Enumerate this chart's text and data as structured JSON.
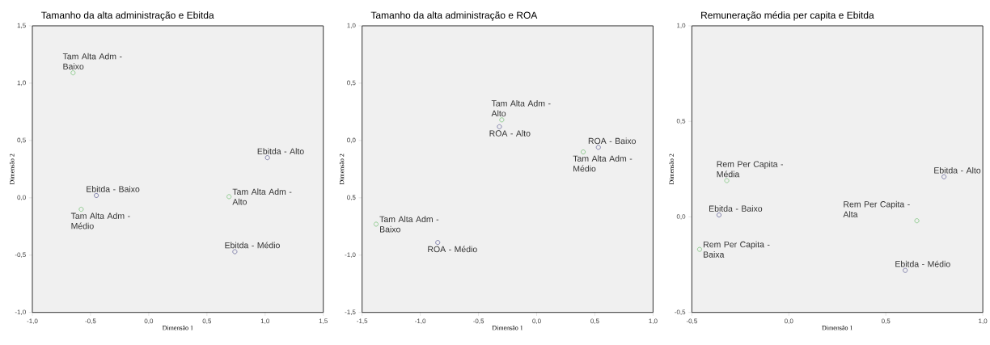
{
  "chart_data": [
    {
      "type": "scatter",
      "title": "Tamanho da alta administração e Ebitda",
      "xlabel": "Dimensão 1",
      "ylabel": "Dimensão 2",
      "xlim": [
        -1.0,
        1.5
      ],
      "ylim": [
        -1.0,
        1.5
      ],
      "xticks": [
        {
          "value": -1.0,
          "label": "-1,0"
        },
        {
          "value": -0.5,
          "label": "-0,5"
        },
        {
          "value": 0.0,
          "label": "0,0"
        },
        {
          "value": 0.5,
          "label": "0,5"
        },
        {
          "value": 1.0,
          "label": "1,0"
        },
        {
          "value": 1.5,
          "label": "1,5"
        }
      ],
      "yticks": [
        {
          "value": -1.0,
          "label": "-1,0"
        },
        {
          "value": -0.5,
          "label": "-0,5"
        },
        {
          "value": 0.0,
          "label": "0,0"
        },
        {
          "value": 0.5,
          "label": "0,5"
        },
        {
          "value": 1.0,
          "label": "1,0"
        },
        {
          "value": 1.5,
          "label": "1,5"
        }
      ],
      "marker": "circle",
      "series": [
        {
          "color": "#7cc47c",
          "x": [
            -0.65,
            -0.58,
            0.69
          ],
          "values": [
            1.09,
            -0.1,
            0.01
          ]
        },
        {
          "color": "#6a6a9c",
          "x": [
            -0.45,
            1.02,
            0.74
          ],
          "values": [
            0.02,
            0.35,
            -0.47
          ]
        }
      ],
      "annotations": [
        {
          "text": "Tam Alta Adm - Baixo",
          "x": -0.65,
          "y": 1.09
        },
        {
          "text": "Tam Alta Adm - Médio",
          "x": -0.58,
          "y": -0.1
        },
        {
          "text": "Tam Alta Adm - Alto",
          "x": 0.69,
          "y": 0.01
        },
        {
          "text": "Ebitda - Baixo",
          "x": -0.45,
          "y": 0.02
        },
        {
          "text": "Ebitda - Alto",
          "x": 1.02,
          "y": 0.35
        },
        {
          "text": "Ebitda - Médio",
          "x": 0.74,
          "y": -0.47
        }
      ]
    },
    {
      "type": "scatter",
      "title": "Tamanho da alta administração e ROA",
      "xlabel": "Dimensão 1",
      "ylabel": "Dimensão 2",
      "xlim": [
        -1.5,
        1.0
      ],
      "ylim": [
        -1.5,
        1.0
      ],
      "xticks": [
        {
          "value": -1.5,
          "label": "-1,5"
        },
        {
          "value": -1.0,
          "label": "-1,0"
        },
        {
          "value": -0.5,
          "label": "-0,5"
        },
        {
          "value": 0.0,
          "label": "0,0"
        },
        {
          "value": 0.5,
          "label": "0,5"
        },
        {
          "value": 1.0,
          "label": "1,0"
        }
      ],
      "yticks": [
        {
          "value": -1.5,
          "label": "-1,5"
        },
        {
          "value": -1.0,
          "label": "-1,0"
        },
        {
          "value": -0.5,
          "label": "0,5"
        },
        {
          "value": 0.0,
          "label": "0,0"
        },
        {
          "value": 0.5,
          "label": "0,5"
        },
        {
          "value": 1.0,
          "label": "1,0"
        }
      ],
      "marker": "circle",
      "series": [
        {
          "color": "#7cc47c",
          "x": [
            -0.3,
            0.4,
            -1.38
          ],
          "values": [
            0.18,
            -0.1,
            -0.73
          ]
        },
        {
          "color": "#6a6a9c",
          "x": [
            -0.32,
            0.53,
            -0.85
          ],
          "values": [
            0.12,
            -0.06,
            -0.89
          ]
        }
      ],
      "annotations": [
        {
          "text": "Tam Alta Adm - Alto",
          "x": -0.3,
          "y": 0.18
        },
        {
          "text": "Tam Alta Adm - Médio",
          "x": 0.4,
          "y": -0.1
        },
        {
          "text": "Tam Alta Adm - Baixo",
          "x": -1.38,
          "y": -0.73
        },
        {
          "text": "ROA - Alto",
          "x": -0.32,
          "y": 0.12
        },
        {
          "text": "ROA - Baixo",
          "x": 0.53,
          "y": -0.06
        },
        {
          "text": "ROA - Médio",
          "x": -0.85,
          "y": -0.89
        }
      ]
    },
    {
      "type": "scatter",
      "title": "Remuneração média per capita e Ebitda",
      "xlabel": "Dimensão 1",
      "ylabel": "Dimensão 2",
      "xlim": [
        -0.5,
        1.0
      ],
      "ylim": [
        -0.5,
        1.0
      ],
      "xticks": [
        {
          "value": -0.5,
          "label": "-0,5"
        },
        {
          "value": 0.0,
          "label": "0,0"
        },
        {
          "value": 0.5,
          "label": "0,5"
        },
        {
          "value": 1.0,
          "label": "1,0"
        }
      ],
      "yticks": [
        {
          "value": -0.5,
          "label": "-0,5"
        },
        {
          "value": 0.0,
          "label": "0,0"
        },
        {
          "value": 0.5,
          "label": "0,5"
        },
        {
          "value": 1.0,
          "label": "1,0"
        }
      ],
      "marker": "circle",
      "series": [
        {
          "color": "#7cc47c",
          "x": [
            -0.32,
            -0.46,
            0.66
          ],
          "values": [
            0.19,
            -0.17,
            -0.02
          ]
        },
        {
          "color": "#6a6a9c",
          "x": [
            -0.36,
            0.8,
            0.6
          ],
          "values": [
            0.01,
            0.21,
            -0.28
          ]
        }
      ],
      "annotations": [
        {
          "text": "Rem Per Capita - Média",
          "x": -0.32,
          "y": 0.19
        },
        {
          "text": "Rem Per Capita - Baixa",
          "x": -0.46,
          "y": -0.17
        },
        {
          "text": "Rem Per Capita - Alta",
          "x": 0.66,
          "y": -0.02
        },
        {
          "text": "Ebitda - Baixo",
          "x": -0.36,
          "y": 0.01
        },
        {
          "text": "Ebitda - Alto",
          "x": 0.8,
          "y": 0.21
        },
        {
          "text": "Ebitda - Médio",
          "x": 0.6,
          "y": -0.28
        }
      ]
    }
  ]
}
